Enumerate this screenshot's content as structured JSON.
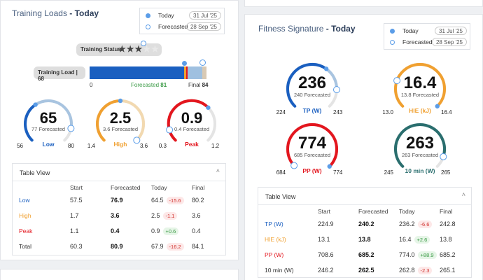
{
  "colors": {
    "blue": "#1a5fc0",
    "orange": "#f0a030",
    "red": "#e3161e",
    "teal": "#2a6e6e",
    "track": "#e4e4e4",
    "light_blue": "#9fc0e0",
    "light_orange": "#f2d9b0",
    "green": "#3a9a45"
  },
  "left": {
    "title": "Training Loads",
    "title_suffix": "- Today",
    "legend": {
      "today_label": "Today",
      "today_date": "31 Jul '25",
      "forecast_label": "Forecasted",
      "forecast_date": "28 Sep '25"
    },
    "training_status": {
      "label": "Training Status",
      "stars_filled": 3,
      "stars_total": 5
    },
    "training_load": {
      "label": "Training Load | 68",
      "min": "0",
      "forecast_text": "Forecasted",
      "forecast_value": "81",
      "final_text": "Final",
      "final_value": "84",
      "today_fraction": 0.81,
      "forecast_fraction": 0.964,
      "final_fraction": 1.0
    },
    "gauges": [
      {
        "value": "65",
        "forecast": "77 Forecasted",
        "name": "Low",
        "min": "56",
        "max": "80",
        "color": "#1a5fc0",
        "light": "#a8c4e0",
        "frac_today": 0.375,
        "frac_fc": 0.875
      },
      {
        "value": "2.5",
        "forecast": "3.6 Forecasted",
        "name": "High",
        "min": "1.4",
        "max": "3.6",
        "color": "#f0a030",
        "light": "#f2d9b0",
        "frac_today": 0.5,
        "frac_fc": 1.0
      },
      {
        "value": "0.9",
        "forecast": "0.4 Forecasted",
        "name": "Peak",
        "min": "0.3",
        "max": "1.2",
        "color": "#e3161e",
        "light": "#f0b0b0",
        "frac_today": 0.667,
        "frac_fc": 0.111
      }
    ],
    "table": {
      "title": "Table View",
      "headers": [
        "",
        "Start",
        "Forecasted",
        "Today",
        "Final"
      ],
      "rows": [
        {
          "name": "Low",
          "color": "#1a5fc0",
          "start": "57.5",
          "forecasted": "76.9",
          "today": "64.5",
          "delta": "-15.6",
          "neg": true,
          "final": "80.2"
        },
        {
          "name": "High",
          "color": "#f0a030",
          "start": "1.7",
          "forecasted": "3.6",
          "today": "2.5",
          "delta": "-1.1",
          "neg": true,
          "final": "3.6"
        },
        {
          "name": "Peak",
          "color": "#e3161e",
          "start": "1.1",
          "forecasted": "0.4",
          "today": "0.9",
          "delta": "+0.6",
          "neg": false,
          "final": "0.4"
        },
        {
          "name": "Total",
          "color": "#333333",
          "start": "60.3",
          "forecasted": "80.9",
          "today": "67.9",
          "delta": "-16.2",
          "neg": true,
          "final": "84.1"
        }
      ]
    }
  },
  "right": {
    "title": "Fitness Signature",
    "title_suffix": "- Today",
    "legend": {
      "today_label": "Today",
      "today_date": "31 Jul '25",
      "forecast_label": "Forecasted",
      "forecast_date": "28 Sep '25"
    },
    "gauges": [
      {
        "value": "236",
        "forecast": "240 Forecasted",
        "name": "TP (W)",
        "min": "224",
        "max": "243",
        "color": "#1a5fc0",
        "light": "#a8c4e0",
        "frac_today": 0.63,
        "frac_fc": 0.84
      },
      {
        "value": "16.4",
        "forecast": "13.8 Forecasted",
        "name": "HIE (kJ)",
        "min": "13.0",
        "max": "16.4",
        "color": "#f0a030",
        "light": "#f2d9b0",
        "frac_today": 1.0,
        "frac_fc": 0.24
      },
      {
        "value": "774",
        "forecast": "685 Forecasted",
        "name": "PP (W)",
        "min": "684",
        "max": "774",
        "color": "#e3161e",
        "light": "#f0b0b0",
        "frac_today": 1.0,
        "frac_fc": 0.01
      },
      {
        "value": "263",
        "forecast": "263 Forecasted",
        "name": "10 min (W)",
        "min": "245",
        "max": "265",
        "color": "#2a6e6e",
        "light": "#a8c8c8",
        "frac_today": 0.9,
        "frac_fc": 0.9
      }
    ],
    "table": {
      "title": "Table View",
      "headers": [
        "",
        "Start",
        "Forecasted",
        "Today",
        "Final"
      ],
      "rows": [
        {
          "name": "TP (W)",
          "color": "#1a5fc0",
          "start": "224.9",
          "forecasted": "240.2",
          "today": "236.2",
          "delta": "-6.6",
          "neg": true,
          "final": "242.8"
        },
        {
          "name": "HIE (kJ)",
          "color": "#f0a030",
          "start": "13.1",
          "forecasted": "13.8",
          "today": "16.4",
          "delta": "+2.6",
          "neg": false,
          "final": "13.8"
        },
        {
          "name": "PP (W)",
          "color": "#e3161e",
          "start": "708.6",
          "forecasted": "685.2",
          "today": "774.0",
          "delta": "+88.9",
          "neg": false,
          "final": "685.2"
        },
        {
          "name": "10 min (W)",
          "color": "#333333",
          "start": "246.2",
          "forecasted": "262.5",
          "today": "262.8",
          "delta": "-2.3",
          "neg": true,
          "final": "265.1"
        }
      ]
    }
  }
}
